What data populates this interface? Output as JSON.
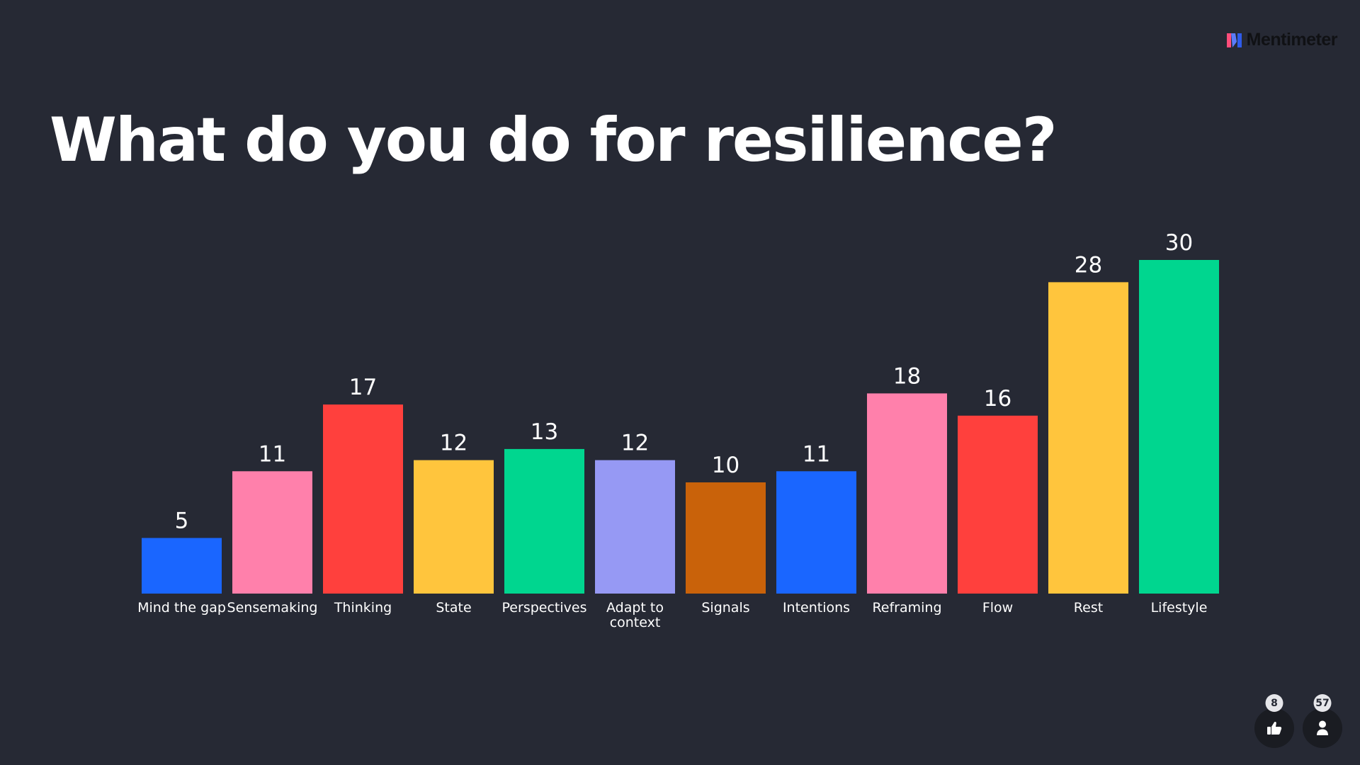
{
  "brand": {
    "name": "Mentimeter",
    "logo_colors": [
      "#ff4d7a",
      "#5b7cfa",
      "#2f5bea"
    ]
  },
  "reactions": {
    "likes_count": "8",
    "participants_count": "57",
    "like_icon": "thumbs-up-icon",
    "participants_icon": "person-icon"
  },
  "chart_data": {
    "type": "bar",
    "title": "What do you do for resilience?",
    "xlabel": "",
    "ylabel": "",
    "ylim": [
      0,
      30
    ],
    "grid": false,
    "legend": "none",
    "categories": [
      "Mind the gap",
      "Sensemaking",
      "Thinking",
      "State",
      "Perspectives",
      "Adapt to context",
      "Signals",
      "Intentions",
      "Reframing",
      "Flow",
      "Rest",
      "Lifestyle"
    ],
    "category_lines": [
      [
        "Mind the gap"
      ],
      [
        "Sensemaking"
      ],
      [
        "Thinking"
      ],
      [
        "State"
      ],
      [
        "Perspectives"
      ],
      [
        "Adapt to",
        "context"
      ],
      [
        "Signals"
      ],
      [
        "Intentions"
      ],
      [
        "Reframing"
      ],
      [
        "Flow"
      ],
      [
        "Rest"
      ],
      [
        "Lifestyle"
      ]
    ],
    "values": [
      5,
      11,
      17,
      12,
      13,
      12,
      10,
      11,
      18,
      16,
      28,
      30
    ],
    "colors": [
      "#1a66ff",
      "#ff80ab",
      "#ff403d",
      "#ffc53d",
      "#00d68f",
      "#9699f4",
      "#c9620a",
      "#1a66ff",
      "#ff80ab",
      "#ff403d",
      "#ffc53d",
      "#00d68f"
    ]
  }
}
